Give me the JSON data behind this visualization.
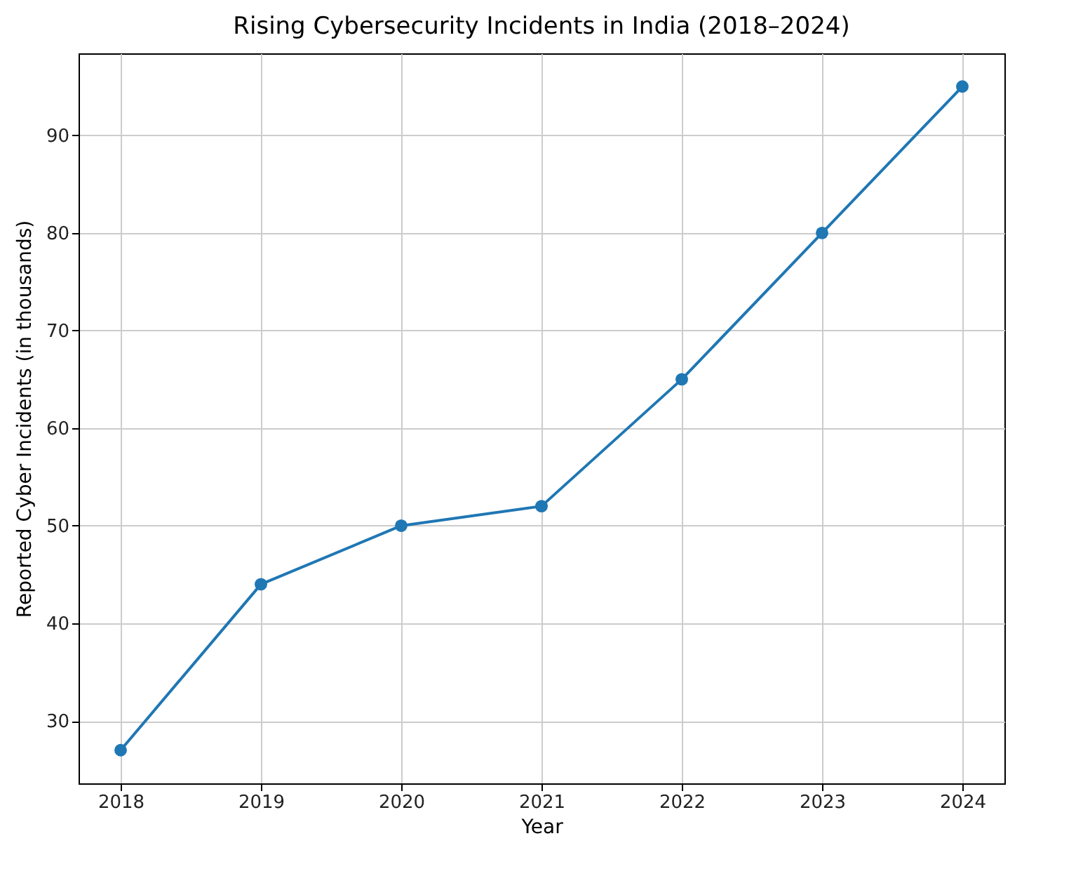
{
  "chart_data": {
    "type": "line",
    "title": "Rising Cybersecurity Incidents in India (2018–2024)",
    "xlabel": "Year",
    "ylabel": "Reported Cyber Incidents (in thousands)",
    "x": [
      2018,
      2019,
      2020,
      2021,
      2022,
      2023,
      2024
    ],
    "series": [
      {
        "color": "#1f77b4",
        "values": [
          27,
          44,
          50,
          52,
          65,
          80,
          95
        ]
      }
    ],
    "xlim": [
      2017.7,
      2024.3
    ],
    "xticks": [
      2018,
      2019,
      2020,
      2021,
      2022,
      2023,
      2024
    ],
    "ylim": [
      23.6,
      98.4
    ],
    "yticks": [
      30,
      40,
      50,
      60,
      70,
      80,
      90
    ],
    "grid": true,
    "marker": "circle",
    "line_style": "solid"
  }
}
